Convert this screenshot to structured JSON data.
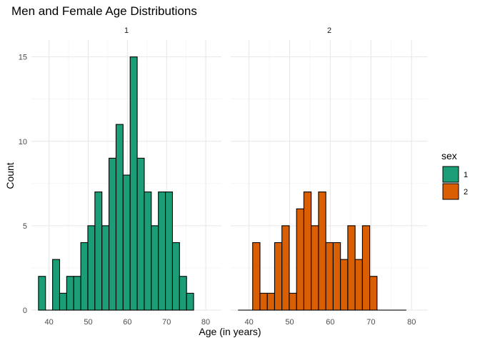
{
  "chart_data": {
    "type": "bar",
    "title": "Men and Female Age Distributions",
    "xlabel": "Age (in years)",
    "ylabel": "Count",
    "xlim": [
      35.5,
      84
    ],
    "ylim": [
      0,
      16
    ],
    "x_ticks": [
      "40",
      "50",
      "60",
      "70",
      "80"
    ],
    "y_ticks": [
      "0",
      "5",
      "10",
      "15"
    ],
    "bin_width": 1.8,
    "bin_centers": [
      38.2,
      40.0,
      41.8,
      43.6,
      45.4,
      47.2,
      49.0,
      50.8,
      52.6,
      54.4,
      56.2,
      58.0,
      59.8,
      61.6,
      63.4,
      65.2,
      67.0,
      68.8,
      70.6,
      72.4,
      74.2,
      76.0,
      77.8,
      79.6,
      81.4
    ],
    "grid": true,
    "legend": {
      "title": "sex",
      "position": "right"
    },
    "facets": [
      {
        "strip_label": "1",
        "legend_label": "1",
        "color": "#1b9e77",
        "values": [
          2,
          0,
          3,
          1,
          2,
          2,
          4,
          5,
          7,
          5,
          9,
          11,
          8,
          15,
          9,
          7,
          5,
          7,
          7,
          4,
          2,
          1,
          0,
          0,
          0
        ]
      },
      {
        "strip_label": "2",
        "legend_label": "2",
        "color": "#d95f02",
        "values": [
          0,
          0,
          4,
          1,
          1,
          4,
          5,
          1,
          6,
          7,
          5,
          7,
          4,
          4,
          3,
          5,
          3,
          5,
          2,
          0,
          0,
          0,
          0,
          0,
          0
        ]
      }
    ]
  }
}
